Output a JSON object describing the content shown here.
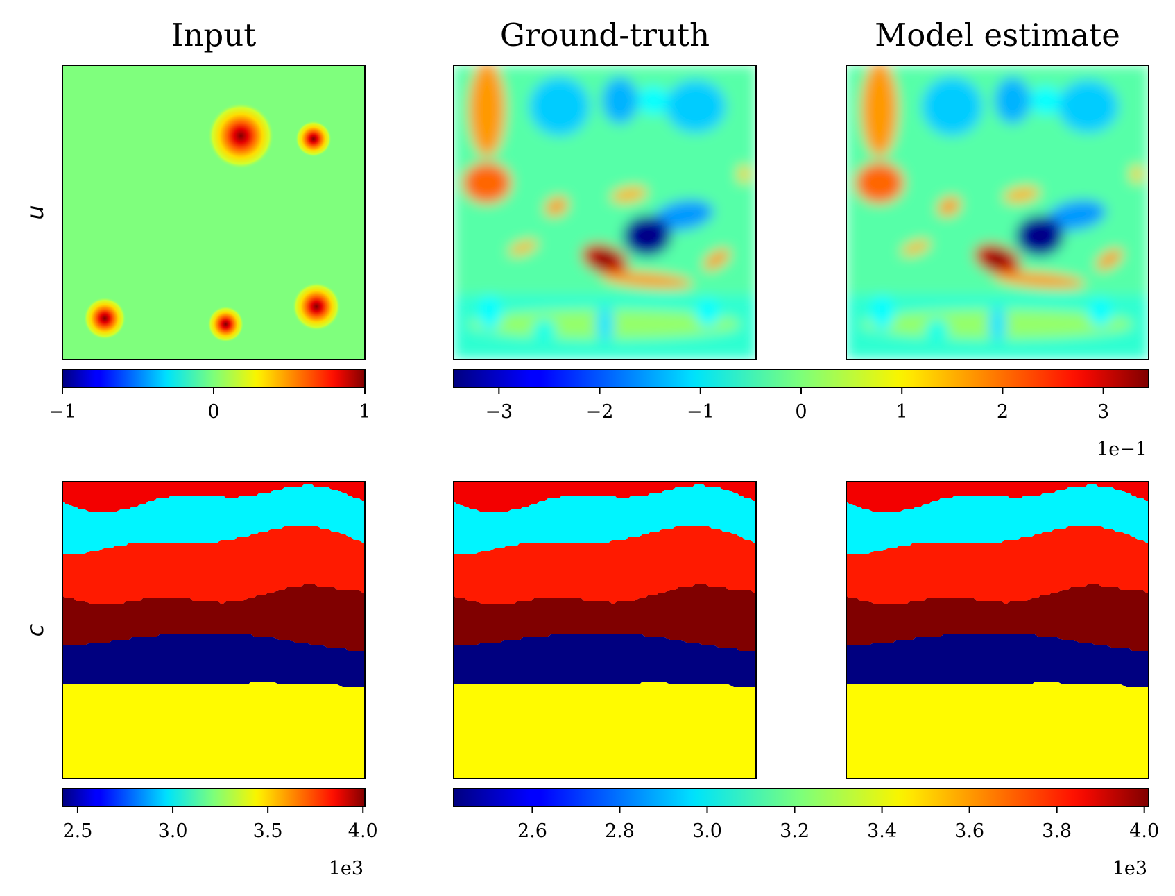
{
  "chart_data": [
    {
      "type": "heatmap",
      "title": "Input",
      "ylabel": "u",
      "field": "input_u",
      "colormap": "jet",
      "clim": [
        -1,
        1
      ],
      "sources": [
        {
          "x": 0.59,
          "y": 0.76,
          "radius": 0.11,
          "amplitude": 1.0
        },
        {
          "x": 0.83,
          "y": 0.75,
          "radius": 0.06,
          "amplitude": 1.0
        },
        {
          "x": 0.14,
          "y": 0.14,
          "radius": 0.07,
          "amplitude": 1.0
        },
        {
          "x": 0.54,
          "y": 0.12,
          "radius": 0.06,
          "amplitude": 1.0
        },
        {
          "x": 0.84,
          "y": 0.18,
          "radius": 0.08,
          "amplitude": 1.0
        }
      ]
    },
    {
      "type": "heatmap",
      "title": "Ground-truth",
      "field": "wavefield_u",
      "colormap": "jet",
      "clim": [
        -0.345,
        0.345
      ]
    },
    {
      "type": "heatmap",
      "title": "Model estimate",
      "field": "wavefield_u",
      "colormap": "jet",
      "clim": [
        -0.345,
        0.345
      ]
    },
    {
      "type": "heatmap",
      "ylabel": "c",
      "field": "layered_c",
      "colormap": "jet",
      "clim": [
        2420,
        4010
      ]
    },
    {
      "type": "heatmap",
      "field": "layered_c",
      "colormap": "jet",
      "clim": [
        2420,
        4010
      ]
    },
    {
      "type": "heatmap",
      "field": "layered_c",
      "colormap": "jet",
      "clim": [
        2420,
        4010
      ]
    }
  ],
  "layers_c": {
    "values_top_to_bottom": [
      3830,
      3000,
      3770,
      4010,
      2420,
      3420
    ]
  },
  "colorbars": {
    "u_input": {
      "range": [
        -1,
        1
      ],
      "ticks": [
        -1,
        0,
        1
      ],
      "tick_labels": [
        "−1",
        "0",
        "1"
      ],
      "offset_label": ""
    },
    "u_wave": {
      "range": [
        -3.45,
        3.45
      ],
      "ticks": [
        -3,
        -2,
        -1,
        0,
        1,
        2,
        3
      ],
      "tick_labels": [
        "−3",
        "−2",
        "−1",
        "0",
        "1",
        "2",
        "3"
      ],
      "offset_label": "1e−1"
    },
    "c_input": {
      "range": [
        2.42,
        4.01
      ],
      "ticks": [
        2.5,
        3.0,
        3.5,
        4.0
      ],
      "tick_labels": [
        "2.5",
        "3.0",
        "3.5",
        "4.0"
      ],
      "offset_label": "1e3"
    },
    "c_wave": {
      "range": [
        2.42,
        4.01
      ],
      "ticks": [
        2.6,
        2.8,
        3.0,
        3.2,
        3.4,
        3.6,
        3.8,
        4.0
      ],
      "tick_labels": [
        "2.6",
        "2.8",
        "3.0",
        "3.2",
        "3.4",
        "3.6",
        "3.8",
        "4.0"
      ],
      "offset_label": "1e3"
    }
  },
  "labels": {
    "title_input": "Input",
    "title_gt": "Ground-truth",
    "title_model": "Model estimate",
    "ylabel_u": "u",
    "ylabel_c": "c"
  }
}
